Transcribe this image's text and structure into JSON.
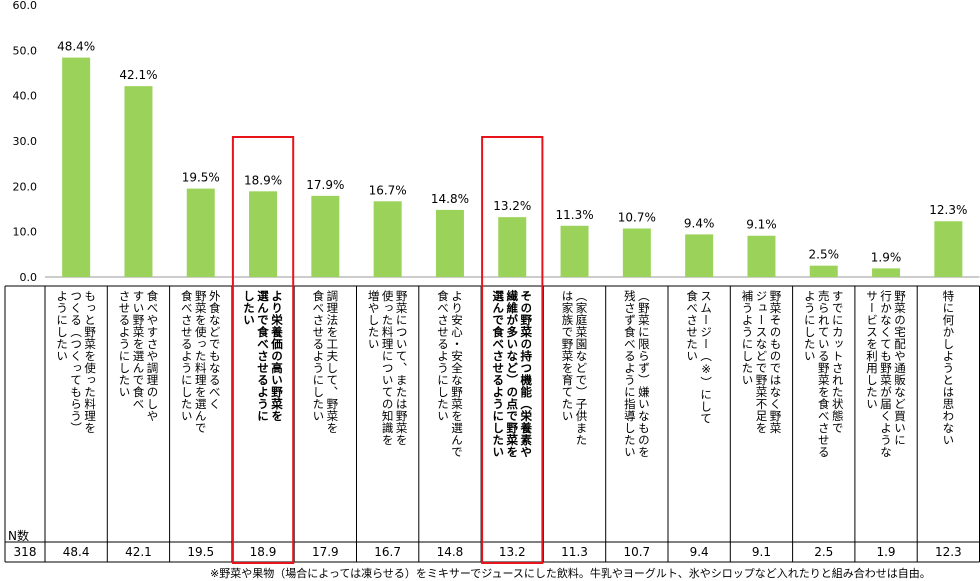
{
  "chart_data": {
    "type": "bar",
    "ylim": [
      0,
      60
    ],
    "yticks": [
      "0.0",
      "10.0",
      "20.0",
      "30.0",
      "40.0",
      "50.0",
      "60.0"
    ],
    "bar_color": "#9bd35a",
    "highlight_color": "#e8141b",
    "highlighted_indices": [
      3,
      7
    ],
    "categories": [
      "もっと野菜を使った料理をつくる（つくってもらう）ようにしたい",
      "食べやすさや調理のしやすい野菜を選んで食べさせるようにしたい",
      "外食などでもなるべく野菜を使った料理を選んで食べさせるようにしたい",
      "より栄養価の高い野菜を選んで食べさせるようにしたい",
      "調理法を工夫して、野菜を食べさせるようにしたい",
      "野菜について、または野菜を使った料理についての知識を増やしたい",
      "より安心・安全な野菜を選んで食べさせるようにしたい",
      "その野菜の持つ機能（栄養素や繊維が多いなど）の点で野菜を選んで食べさせるようにしたい",
      "（家庭菜園などで）子供また は家族で野菜を育てたい",
      "（野菜に限らず）嫌いなものを残さず食べるように指導したい",
      "スムージー（※）にして食べさせたい",
      "野菜そのものではなくジュースなどで野菜不足を補うようにしたい",
      "すでにカットされた状態で売られている野菜を食べさせるようにしたい",
      "野菜の宅配や通販など買いに行かなくても野菜が届くようなサービスを利用したい",
      "特に何かしようとは思わない"
    ],
    "category_lines": [
      [
        "もっと野菜を使った料理を",
        "つくる（つくってもらう）",
        "ようにしたい"
      ],
      [
        "食べやすさや調理のしや",
        "すい野菜を選んで食べ",
        "させるようにしたい"
      ],
      [
        "外食などでもなるべく",
        "野菜を使った料理を選んで",
        "食べさせるようにしたい"
      ],
      [
        "より栄養価の高い野菜を",
        "選んで食べさせるように",
        "したい"
      ],
      [
        "調理法を工夫して、野菜を",
        "食べさせるようにしたい"
      ],
      [
        "野菜について、または野菜を",
        "使った料理についての知識を",
        "増やしたい"
      ],
      [
        "より安心・安全な野菜を選んで",
        "食べさせるようにしたい"
      ],
      [
        "その野菜の持つ機能（栄養素や",
        "繊維が多いなど）の点で野菜を",
        "選んで食べさせるようにしたい"
      ],
      [
        "（家庭菜園などで）子供また",
        "は家族で野菜を育てたい"
      ],
      [
        "（野菜に限らず）嫌いなものを",
        "残さず食べるように指導したい"
      ],
      [
        "スムージー（※）にして",
        "食べさせたい"
      ],
      [
        "野菜そのものではなく野菜",
        "ジュースなどで野菜不足を",
        "補うようにしたい"
      ],
      [
        "すでにカットされた状態で",
        "売られている野菜を食べさせる",
        "ようにしたい"
      ],
      [
        "野菜の宅配や通販など買いに",
        "行かなくても野菜が届くような",
        "サービスを利用したい"
      ],
      [
        "特に何かしようとは思わない"
      ]
    ],
    "bold_indices": [
      3,
      7
    ],
    "values": [
      48.4,
      42.1,
      19.5,
      18.9,
      17.9,
      16.7,
      14.8,
      13.2,
      11.3,
      10.7,
      9.4,
      9.1,
      2.5,
      1.9,
      12.3
    ],
    "value_labels": [
      "48.4%",
      "42.1%",
      "19.5%",
      "18.9%",
      "17.9%",
      "16.7%",
      "14.8%",
      "13.2%",
      "11.3%",
      "10.7%",
      "9.4%",
      "9.1%",
      "2.5%",
      "1.9%",
      "12.3%"
    ],
    "table_values": [
      "48.4",
      "42.1",
      "19.5",
      "18.9",
      "17.9",
      "16.7",
      "14.8",
      "13.2",
      "11.3",
      "10.7",
      "9.4",
      "9.1",
      "2.5",
      "1.9",
      "12.3"
    ]
  },
  "table": {
    "n_label": "N数",
    "n_value": "318"
  },
  "footnote": "※野菜や果物（場合によっては凍らせる）をミキサーでジュースにした飲料。牛乳やヨーグルト、氷やシロップなど入れたりと組み合わせは自由。"
}
